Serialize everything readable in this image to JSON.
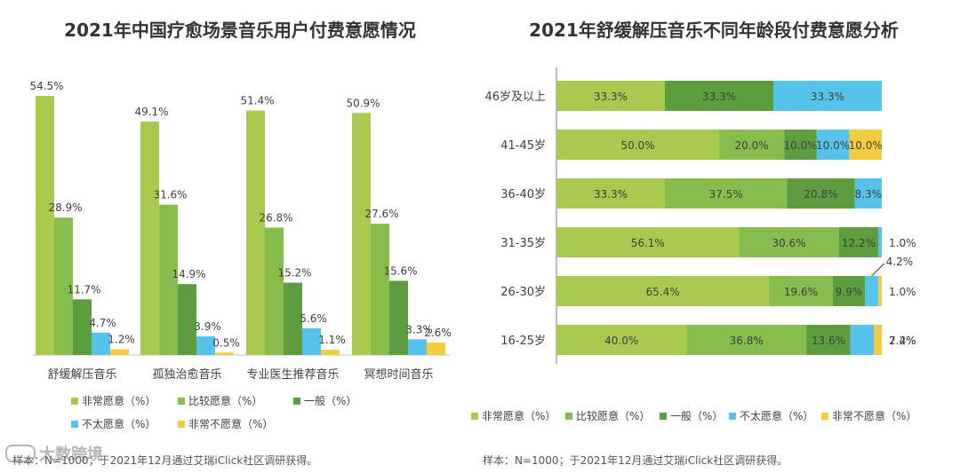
{
  "colors": {
    "very_willing": "#a9c94f",
    "fairly_willing": "#86bd4c",
    "neutral": "#5e9d3f",
    "not_very_willing": "#55c3ec",
    "very_unwilling": "#f5cc3d"
  },
  "legend_labels": [
    "非常愿意（%）",
    "比较愿意（%）",
    "一般（%）",
    "不太愿意（%）",
    "非常不愿意（%）"
  ],
  "chart_data": [
    {
      "type": "bar",
      "title": "2021年中国疗愈场景音乐用户付费意愿情况",
      "categories": [
        "舒缓解压音乐",
        "孤独治愈音乐",
        "专业医生推荐音乐",
        "冥想时间音乐"
      ],
      "series": [
        {
          "name": "非常愿意（%）",
          "values": [
            54.5,
            49.1,
            51.4,
            50.9
          ],
          "labels": [
            "54.5%",
            "49.1%",
            "51.4%",
            "50.9%"
          ]
        },
        {
          "name": "比较愿意（%）",
          "values": [
            28.9,
            31.6,
            26.8,
            27.6
          ],
          "labels": [
            "28.9%",
            "31.6%",
            "26.8%",
            "27.6%"
          ]
        },
        {
          "name": "一般（%）",
          "values": [
            11.7,
            14.9,
            15.2,
            15.6
          ],
          "labels": [
            "11.7%",
            "14.9%",
            "15.2%",
            "15.6%"
          ]
        },
        {
          "name": "不太愿意（%）",
          "values": [
            4.7,
            3.9,
            5.6,
            3.3
          ],
          "labels": [
            "4.7%",
            "3.9%",
            "5.6%",
            "3.3%"
          ]
        },
        {
          "name": "非常不愿意（%）",
          "values": [
            1.2,
            0.5,
            1.1,
            2.6
          ],
          "labels": [
            "1.2%",
            "0.5%",
            "1.1%",
            "2.6%"
          ]
        }
      ],
      "ylim": [
        0,
        60
      ],
      "grid": false,
      "legend": "bottom-left",
      "note": "样本：N=1000；于2021年12月通过艾瑞iClick社区调研获得。"
    },
    {
      "type": "bar",
      "orientation": "horizontal",
      "stacked": true,
      "title": "2021年舒缓解压音乐不同年龄段付费意愿分析",
      "categories": [
        "46岁及以上",
        "41-45岁",
        "36-40岁",
        "31-35岁",
        "26-30岁",
        "16-25岁"
      ],
      "series": [
        {
          "name": "非常愿意（%）",
          "values": [
            33.3,
            50.0,
            33.3,
            56.1,
            65.4,
            40.0
          ],
          "labels": [
            "33.3%",
            "50.0%",
            "33.3%",
            "56.1%",
            "65.4%",
            "40.0%"
          ]
        },
        {
          "name": "比较愿意（%）",
          "values": [
            0,
            20.0,
            37.5,
            30.6,
            19.6,
            36.8
          ],
          "labels": [
            "",
            "20.0%",
            "37.5%",
            "30.6%",
            "19.6%",
            "36.8%"
          ]
        },
        {
          "name": "一般（%）",
          "values": [
            33.3,
            10.0,
            20.8,
            12.2,
            9.9,
            13.6
          ],
          "labels": [
            "33.3%",
            "10.0%",
            "20.8%",
            "12.2%",
            "9.9%",
            "13.6%"
          ]
        },
        {
          "name": "不太愿意（%）",
          "values": [
            33.3,
            10.0,
            8.3,
            1.0,
            4.2,
            7.2
          ],
          "labels": [
            "33.3%",
            "10.0%",
            "8.3%",
            "1.0%",
            "4.2%",
            "7.2%"
          ]
        },
        {
          "name": "非常不愿意（%）",
          "values": [
            0,
            10.0,
            0,
            0,
            1.0,
            2.4
          ],
          "labels": [
            "",
            "10.0%",
            "",
            "",
            "1.0%",
            "2.4%"
          ]
        }
      ],
      "xlim": [
        0,
        100
      ],
      "grid": false,
      "legend": "bottom",
      "note": "样本：N=1000；于2021年12月通过艾瑞iClick社区调研获得。"
    }
  ],
  "watermark": "大数跨境"
}
